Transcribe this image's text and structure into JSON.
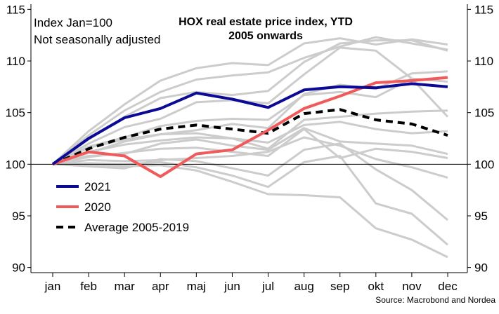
{
  "chart_data": {
    "type": "line",
    "title": "HOX real estate price index, YTD",
    "subtitle": "2005 onwards",
    "notes": [
      "Index Jan=100",
      "Not seasonally adjusted"
    ],
    "source": "Source: Macrobond and Nordea",
    "categories": [
      "jan",
      "feb",
      "mar",
      "apr",
      "maj",
      "jun",
      "jul",
      "aug",
      "sep",
      "okt",
      "nov",
      "dec"
    ],
    "ylim": [
      89.5,
      115.5
    ],
    "yticks": [
      90,
      95,
      100,
      105,
      110,
      115
    ],
    "reference_line": 100,
    "grid": false,
    "legend_position": "bottom-left",
    "series": [
      {
        "name": "2021",
        "color": "#0a0a96",
        "style": "solid",
        "values": [
          100,
          102.5,
          104.5,
          105.4,
          106.9,
          106.3,
          105.5,
          107.2,
          107.5,
          107.4,
          107.8,
          107.5
        ]
      },
      {
        "name": "2020",
        "color": "#f05a5a",
        "style": "solid",
        "values": [
          100,
          101.2,
          100.8,
          98.8,
          101.0,
          101.4,
          103.3,
          105.4,
          106.6,
          107.9,
          108.1,
          108.4
        ]
      },
      {
        "name": "Average 2005-2019",
        "color": "#000000",
        "style": "dashed",
        "values": [
          100,
          101.5,
          102.6,
          103.4,
          103.8,
          103.4,
          103.0,
          104.9,
          105.3,
          104.3,
          103.9,
          102.8
        ]
      }
    ],
    "background_series_color": "#cccccc",
    "background_series": [
      [
        100,
        103.2,
        105.8,
        108.1,
        109.3,
        109.8,
        109.6,
        111.7,
        112.2,
        111.6,
        112.1,
        111.6
      ],
      [
        100,
        102.8,
        105.2,
        107.0,
        108.2,
        108.6,
        108.9,
        110.3,
        111.4,
        112.3,
        111.7,
        111.1
      ],
      [
        100,
        102.4,
        104.6,
        106.4,
        107.0,
        106.7,
        107.1,
        109.9,
        111.7,
        112.0,
        112.0,
        111.0
      ],
      [
        100,
        102.0,
        103.6,
        104.4,
        106.0,
        106.2,
        105.9,
        108.7,
        111.3,
        111.0,
        108.3,
        104.6
      ],
      [
        100,
        101.6,
        102.4,
        102.9,
        103.3,
        103.9,
        103.5,
        106.8,
        107.7,
        107.3,
        108.8,
        109.0
      ],
      [
        100,
        101.7,
        102.6,
        103.7,
        104.2,
        104.4,
        104.3,
        106.7,
        107.0,
        106.5,
        108.3,
        108.0
      ],
      [
        100,
        101.1,
        102.2,
        102.9,
        103.0,
        102.5,
        101.5,
        104.3,
        104.6,
        104.9,
        105.1,
        105.2
      ],
      [
        100,
        101.2,
        101.9,
        102.3,
        102.6,
        102.5,
        102.1,
        103.8,
        104.1,
        103.4,
        103.0,
        103.2
      ],
      [
        100,
        100.8,
        101.0,
        102.0,
        102.4,
        101.8,
        101.4,
        103.5,
        102.2,
        102.0,
        101.8,
        101.0
      ],
      [
        100,
        100.7,
        101.1,
        101.5,
        101.6,
        101.2,
        100.8,
        103.4,
        100.6,
        101.5,
        101.2,
        100.6
      ],
      [
        100,
        100.4,
        100.3,
        100.4,
        100.6,
        100.8,
        101.2,
        102.6,
        101.8,
        100.5,
        99.7,
        98.7
      ],
      [
        100,
        99.8,
        99.6,
        100.5,
        100.3,
        99.6,
        98.9,
        101.4,
        102.0,
        99.5,
        97.5,
        94.6
      ],
      [
        100,
        100.1,
        100.0,
        100.2,
        99.7,
        98.9,
        97.8,
        100.2,
        100.8,
        96.2,
        95.2,
        92.2
      ],
      [
        100,
        100.0,
        99.8,
        99.9,
        99.4,
        98.3,
        97.1,
        97.0,
        96.8,
        93.8,
        92.7,
        91.0
      ]
    ]
  }
}
